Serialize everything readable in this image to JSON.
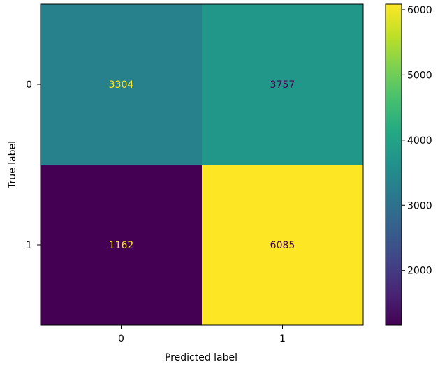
{
  "chart_data": {
    "type": "heatmap",
    "title": "",
    "xlabel": "Predicted label",
    "ylabel": "True label",
    "x_categories": [
      "0",
      "1"
    ],
    "y_categories": [
      "0",
      "1"
    ],
    "matrix": [
      [
        3304,
        3757
      ],
      [
        1162,
        6085
      ]
    ],
    "colormap": "viridis",
    "colorbar": {
      "vmin": 1162,
      "vmax": 6085,
      "ticks": [
        2000,
        3000,
        4000,
        5000,
        6000
      ]
    },
    "colors": {
      "cell_0_0": "#2d718e",
      "cell_0_1": "#22978b",
      "cell_1_0": "#440154",
      "cell_1_1": "#fde725",
      "text_on_dark": "#fde725",
      "text_on_light": "#440154"
    }
  }
}
